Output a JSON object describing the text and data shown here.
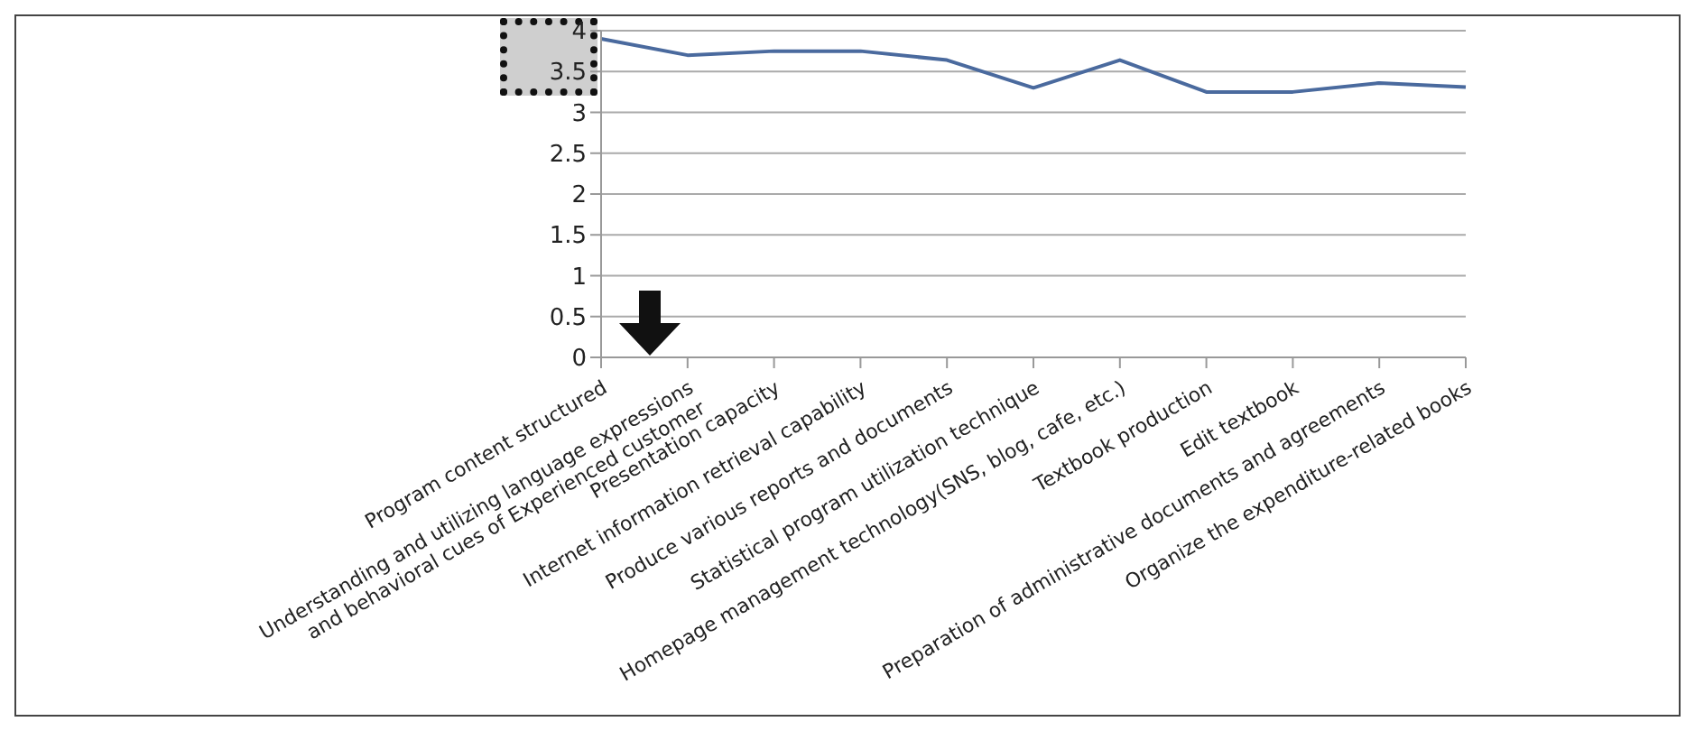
{
  "chart_data": {
    "type": "line",
    "categories": [
      "Program content structured",
      "Understanding and utilizing language expressions\nand behavioral cues of Experienced customer",
      "Presentation capacity",
      "Internet information retrieval capability",
      "Produce various reports and documents",
      "Statistical program utilization technique",
      "Homepage management technology(SNS, blog, cafe, etc.)",
      "Textbook production",
      "Edit textbook",
      "Preparation of administrative documents and agreements",
      "Organize the expenditure-related books"
    ],
    "series": [
      {
        "color": "#4a6a9e",
        "values": [
          3.9,
          3.7,
          3.75,
          3.75,
          3.64,
          3.3,
          3.64,
          3.25,
          3.25,
          3.36,
          3.31
        ]
      }
    ],
    "ylim": [
      0,
      4
    ],
    "yticks": [
      0,
      0.5,
      1,
      1.5,
      2,
      2.5,
      3,
      3.5,
      4
    ],
    "grid": "y",
    "marker": "none",
    "legend": false
  }
}
